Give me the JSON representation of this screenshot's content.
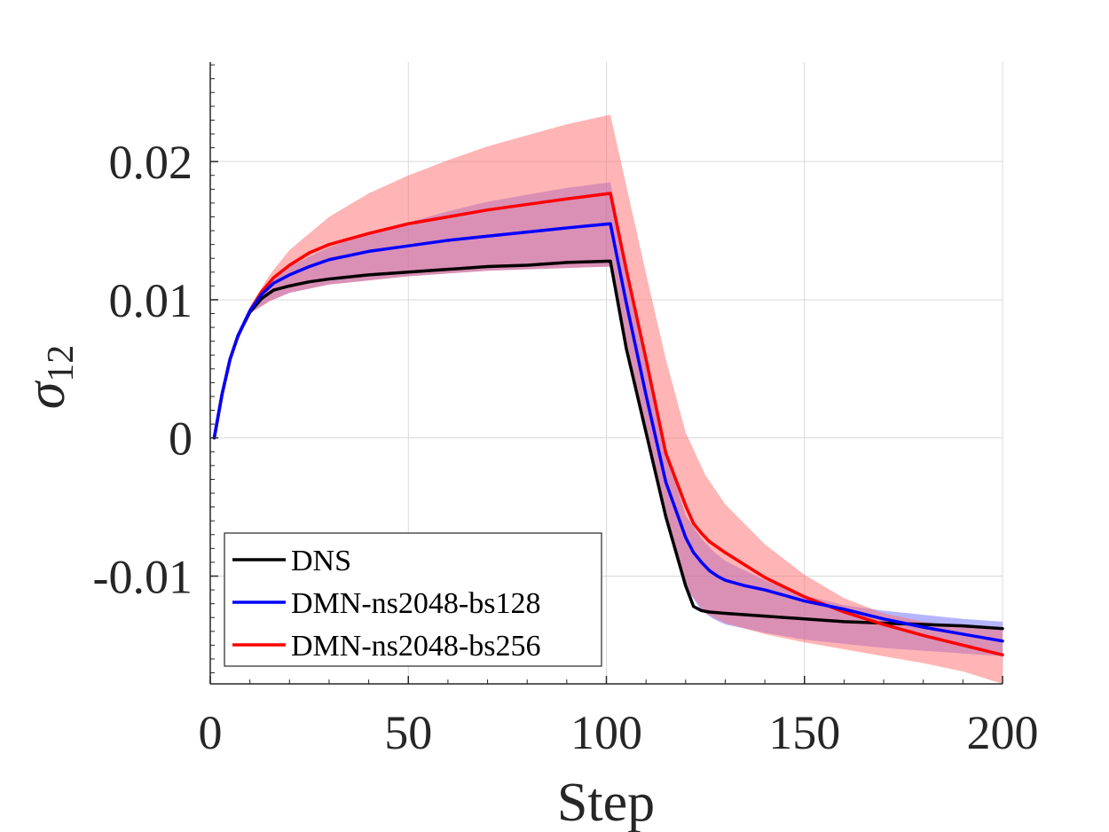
{
  "chart_data": {
    "type": "line",
    "title": "",
    "xlabel": "Step",
    "ylabel_base": "σ",
    "ylabel_sub": "12",
    "xlim": [
      0,
      200
    ],
    "ylim": [
      -0.0178,
      0.0272
    ],
    "x_ticks": [
      0,
      50,
      100,
      150,
      200
    ],
    "x_tick_labels": [
      "0",
      "50",
      "100",
      "150",
      "200"
    ],
    "y_ticks": [
      -0.01,
      0,
      0.01,
      0.02
    ],
    "y_tick_labels": [
      "-0.01",
      "0",
      "0.01",
      "0.02"
    ],
    "grid": true,
    "legend_position": "bottom-left",
    "series": [
      {
        "name": "DNS",
        "color": "#000000",
        "x": [
          1,
          3,
          5,
          7,
          10,
          13,
          16,
          20,
          25,
          30,
          40,
          50,
          60,
          70,
          80,
          90,
          101,
          105,
          110,
          115,
          120,
          122,
          124,
          126,
          130,
          140,
          150,
          160,
          170,
          180,
          190,
          200
        ],
        "y": [
          0.0,
          0.0032,
          0.0057,
          0.0074,
          0.0091,
          0.0101,
          0.0107,
          0.011,
          0.0113,
          0.0115,
          0.0118,
          0.012,
          0.0122,
          0.0124,
          0.0125,
          0.0127,
          0.0128,
          0.0065,
          0.0004,
          -0.0057,
          -0.0107,
          -0.0122,
          -0.0125,
          -0.0126,
          -0.0127,
          -0.0129,
          -0.0131,
          -0.0133,
          -0.0134,
          -0.0135,
          -0.0136,
          -0.0138
        ]
      },
      {
        "name": "DMN-ns2048-bs128",
        "color": "#0000ff",
        "x": [
          1,
          3,
          5,
          7,
          10,
          13,
          16,
          20,
          25,
          30,
          40,
          50,
          60,
          70,
          80,
          90,
          101,
          105,
          110,
          115,
          120,
          122,
          124,
          126,
          128,
          130,
          135,
          140,
          150,
          160,
          170,
          180,
          190,
          200
        ],
        "y": [
          0.0,
          0.0032,
          0.0057,
          0.0074,
          0.0092,
          0.0104,
          0.0112,
          0.0118,
          0.0124,
          0.0129,
          0.0135,
          0.0139,
          0.0143,
          0.0146,
          0.0149,
          0.0152,
          0.0155,
          0.0098,
          0.0031,
          -0.0032,
          -0.0072,
          -0.0083,
          -0.009,
          -0.0096,
          -0.01,
          -0.0103,
          -0.0107,
          -0.011,
          -0.0118,
          -0.0124,
          -0.0131,
          -0.0137,
          -0.0142,
          -0.0147
        ]
      },
      {
        "name": "DMN-ns2048-bs256",
        "color": "#ff0000",
        "x": [
          1,
          3,
          5,
          7,
          10,
          13,
          16,
          20,
          25,
          30,
          40,
          50,
          60,
          70,
          80,
          90,
          101,
          105,
          110,
          115,
          120,
          122,
          124,
          126,
          130,
          140,
          150,
          160,
          170,
          180,
          190,
          200
        ],
        "y": [
          0.0,
          0.0032,
          0.0057,
          0.0074,
          0.0092,
          0.0106,
          0.0116,
          0.0125,
          0.0134,
          0.014,
          0.0148,
          0.0155,
          0.016,
          0.0165,
          0.0169,
          0.0173,
          0.0177,
          0.0122,
          0.0057,
          -0.0011,
          -0.0049,
          -0.0062,
          -0.0069,
          -0.0075,
          -0.0083,
          -0.0101,
          -0.0115,
          -0.0126,
          -0.0135,
          -0.0143,
          -0.015,
          -0.0157
        ]
      }
    ],
    "bands": [
      {
        "name": "DMN-ns2048-bs128 range",
        "color": "#6b6bff",
        "opacity": 0.5,
        "x": [
          1,
          5,
          10,
          15,
          20,
          30,
          40,
          50,
          60,
          70,
          80,
          90,
          101,
          110,
          115,
          120,
          124,
          127,
          130,
          140,
          150,
          160,
          170,
          180,
          190,
          200
        ],
        "upper": [
          0.0,
          0.0057,
          0.0093,
          0.0112,
          0.0124,
          0.0138,
          0.0148,
          0.0156,
          0.0164,
          0.0171,
          0.0176,
          0.0181,
          0.0185,
          0.0056,
          -0.001,
          -0.0056,
          -0.0073,
          -0.0082,
          -0.0089,
          -0.0103,
          -0.0114,
          -0.0121,
          -0.0125,
          -0.0128,
          -0.0131,
          -0.0133
        ],
        "lower": [
          0.0,
          0.0057,
          0.009,
          0.0099,
          0.0105,
          0.0111,
          0.0114,
          0.0117,
          0.0119,
          0.0121,
          0.0122,
          0.0123,
          0.0124,
          0.0003,
          -0.0057,
          -0.0108,
          -0.0125,
          -0.0131,
          -0.0135,
          -0.0141,
          -0.0146,
          -0.0149,
          -0.0152,
          -0.0154,
          -0.0156,
          -0.0158
        ]
      },
      {
        "name": "DMN-ns2048-bs256 range",
        "color": "#ff6b6b",
        "opacity": 0.5,
        "x": [
          1,
          5,
          10,
          15,
          20,
          30,
          40,
          50,
          60,
          70,
          80,
          90,
          101,
          110,
          115,
          120,
          125,
          130,
          140,
          150,
          160,
          170,
          180,
          190,
          200
        ],
        "upper": [
          0.0,
          0.0058,
          0.0095,
          0.0118,
          0.0136,
          0.016,
          0.0177,
          0.019,
          0.0201,
          0.0211,
          0.0219,
          0.0227,
          0.0234,
          0.0119,
          0.0057,
          0.0004,
          -0.0027,
          -0.0048,
          -0.0077,
          -0.0099,
          -0.0116,
          -0.0127,
          -0.0133,
          -0.0137,
          -0.0139
        ],
        "lower": [
          0.0,
          0.0057,
          0.009,
          0.0099,
          0.0105,
          0.0111,
          0.0114,
          0.0117,
          0.0119,
          0.0121,
          0.0122,
          0.0123,
          0.0124,
          0.0003,
          -0.0057,
          -0.0108,
          -0.0127,
          -0.0134,
          -0.0142,
          -0.0148,
          -0.0153,
          -0.0158,
          -0.0163,
          -0.0169,
          -0.0178
        ]
      }
    ]
  }
}
